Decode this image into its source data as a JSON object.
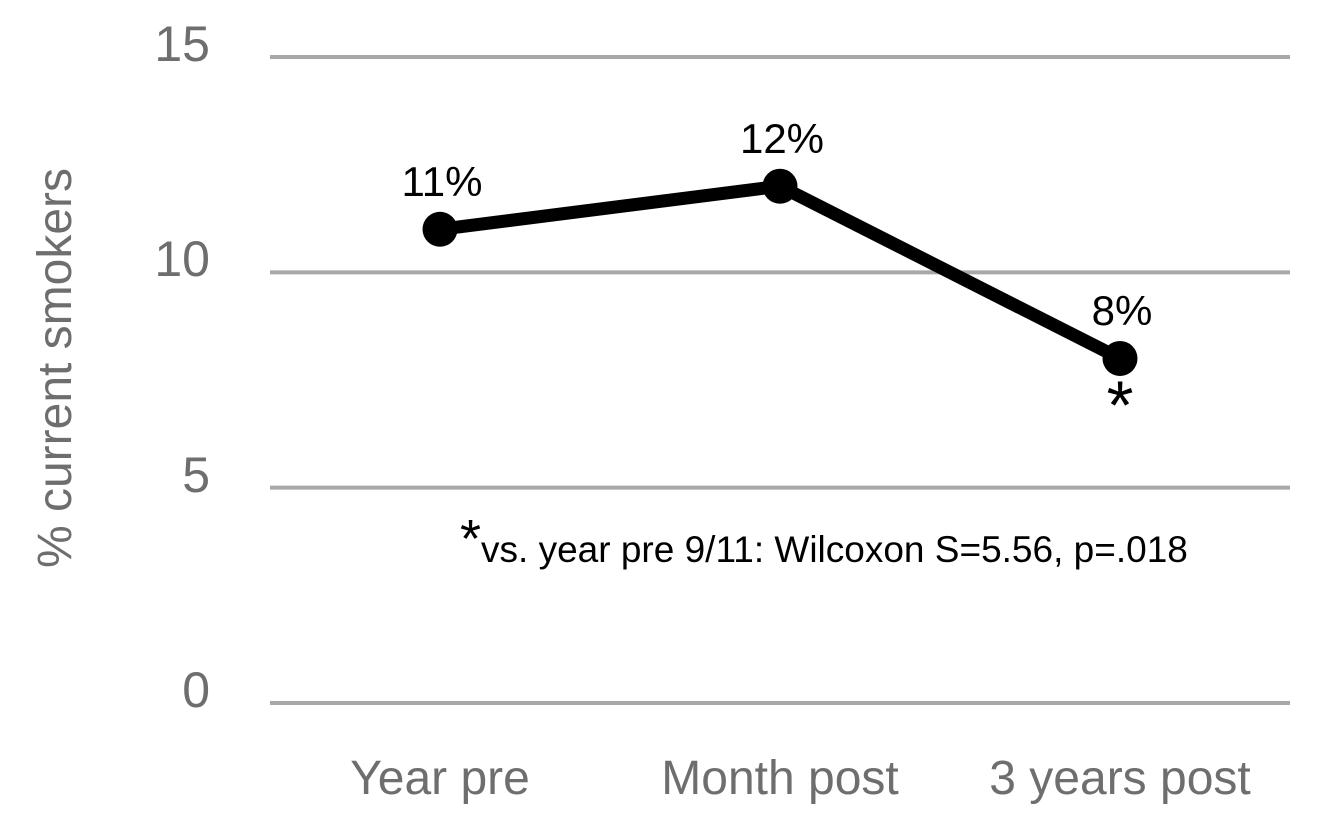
{
  "chart_data": {
    "type": "line",
    "title": "",
    "categories": [
      "Year pre",
      "Month post",
      "3 years post"
    ],
    "series": [
      {
        "name": "% current smokers",
        "values": [
          11,
          12,
          8
        ]
      }
    ],
    "data_labels": [
      "11%",
      "12%",
      "8%"
    ],
    "xlabel": "",
    "ylabel": "% current smokers",
    "yticks": [
      0,
      5,
      10,
      15
    ],
    "ylim": [
      0,
      15
    ],
    "grid": "horizontal",
    "legend_position": "none",
    "significance": {
      "marked_category": "3 years post",
      "symbol": "*"
    },
    "annotation": {
      "marker": "*",
      "text": "vs. year pre 9/11: Wilcoxon S=5.56, p=.018"
    },
    "colors": {
      "line": "#000000",
      "marker_fill": "#000000",
      "gridline": "#a8a8a8",
      "axis_text": "#6e6e6e",
      "data_label_text": "#000000"
    }
  }
}
